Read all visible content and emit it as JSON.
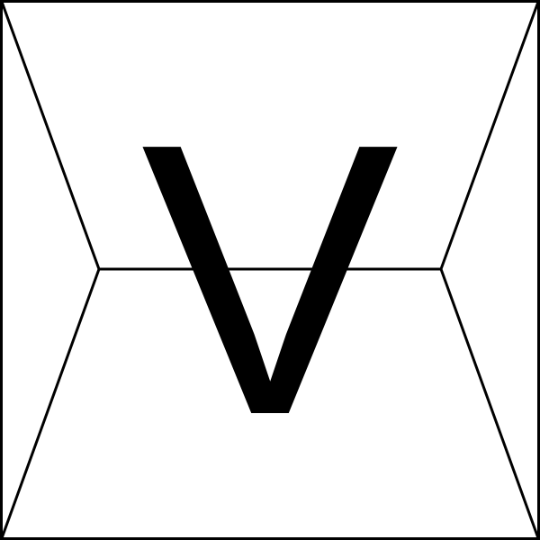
{
  "letter": "V",
  "colors": {
    "background": "#ffffff",
    "stroke": "#000000"
  }
}
